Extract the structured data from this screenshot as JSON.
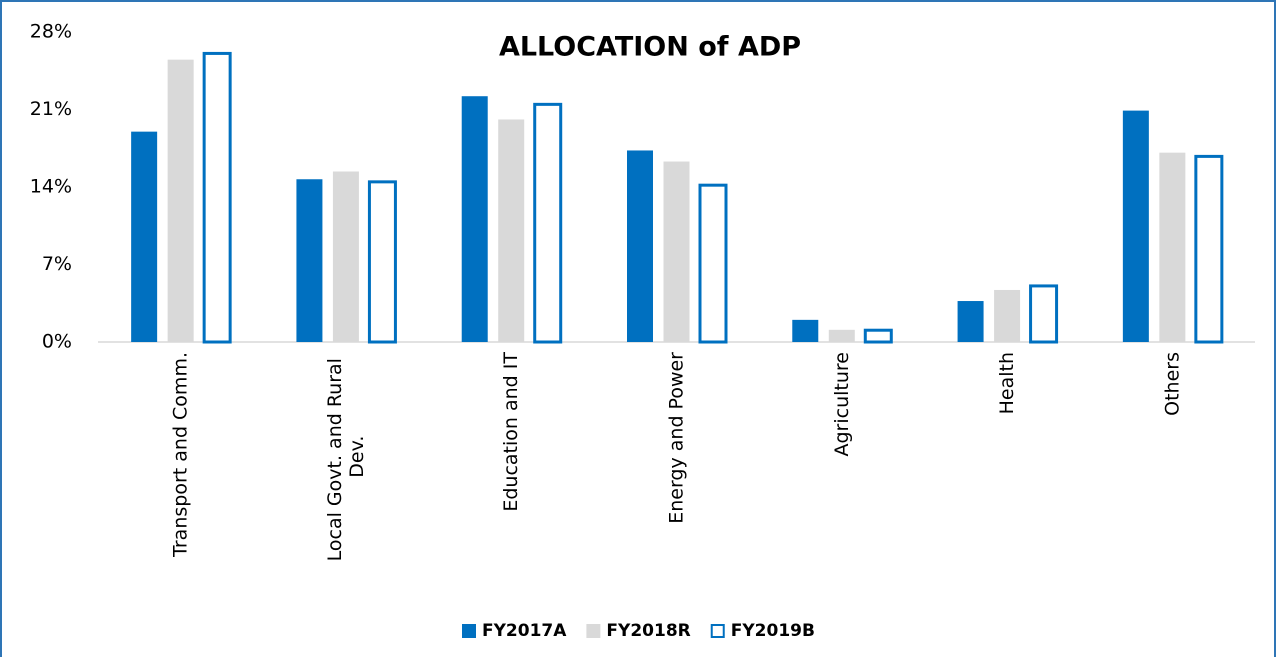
{
  "chart_data": {
    "type": "bar",
    "title": "ALLOCATION of ADP",
    "categories": [
      "Transport and Comm.",
      "Local Govt. and Rural Dev.",
      "Education and IT",
      "Energy and Power",
      "Agriculture",
      "Health",
      "Others"
    ],
    "series": [
      {
        "name": "FY2017A",
        "color": "#0070c0",
        "style": "filled",
        "values": [
          19.0,
          14.7,
          22.2,
          17.3,
          2.0,
          3.7,
          20.9
        ]
      },
      {
        "name": "FY2018R",
        "color": "#d9d9d9",
        "style": "filled",
        "values": [
          25.5,
          15.4,
          20.1,
          16.3,
          1.1,
          4.7,
          17.1
        ]
      },
      {
        "name": "FY2019B",
        "color": "#0070c0",
        "style": "outline",
        "values": [
          26.2,
          14.6,
          21.6,
          14.3,
          1.2,
          5.2,
          16.9
        ]
      }
    ],
    "ylim": [
      0,
      28
    ],
    "yticks": [
      {
        "value": 0,
        "label": "0%"
      },
      {
        "value": 7,
        "label": "7%"
      },
      {
        "value": 14,
        "label": "14%"
      },
      {
        "value": 21,
        "label": "21%"
      },
      {
        "value": 28,
        "label": "28%"
      }
    ],
    "grid": false,
    "legend": "bottom"
  }
}
